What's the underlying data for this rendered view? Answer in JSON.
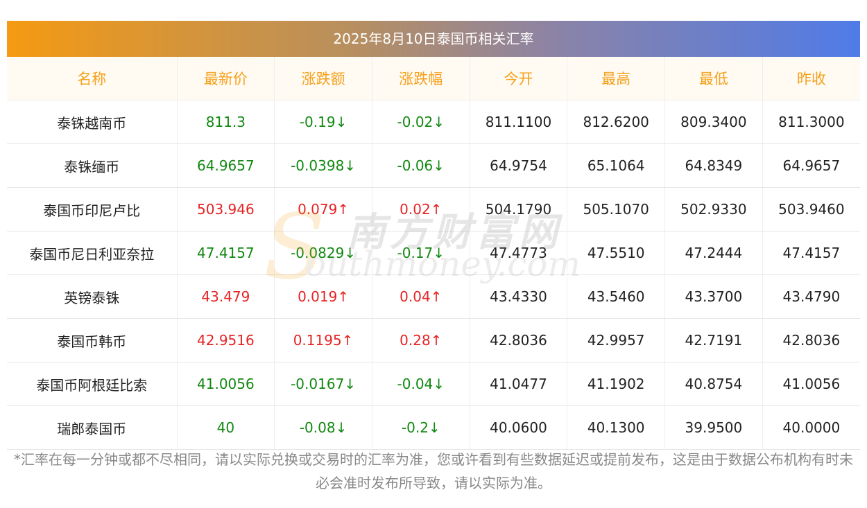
{
  "title": "2025年8月10日泰国币相关汇率",
  "headers": [
    "名称",
    "最新价",
    "涨跌额",
    "涨跌幅",
    "今开",
    "最高",
    "最低",
    "昨收"
  ],
  "rows": [
    {
      "name": "泰铢越南币",
      "latest": "811.3",
      "change": "-0.19↓",
      "pct": "-0.02↓",
      "open": "811.1100",
      "high": "812.6200",
      "low": "809.3400",
      "prev": "811.3000",
      "dir": "down"
    },
    {
      "name": "泰铢缅币",
      "latest": "64.9657",
      "change": "-0.0398↓",
      "pct": "-0.06↓",
      "open": "64.9754",
      "high": "65.1064",
      "low": "64.8349",
      "prev": "64.9657",
      "dir": "down"
    },
    {
      "name": "泰国币印尼卢比",
      "latest": "503.946",
      "change": "0.079↑",
      "pct": "0.02↑",
      "open": "504.1790",
      "high": "505.1070",
      "low": "502.9330",
      "prev": "503.9460",
      "dir": "up"
    },
    {
      "name": "泰国币尼日利亚奈拉",
      "latest": "47.4157",
      "change": "-0.0829↓",
      "pct": "-0.17↓",
      "open": "47.4773",
      "high": "47.5510",
      "low": "47.2444",
      "prev": "47.4157",
      "dir": "down"
    },
    {
      "name": "英镑泰铢",
      "latest": "43.479",
      "change": "0.019↑",
      "pct": "0.04↑",
      "open": "43.4330",
      "high": "43.5460",
      "low": "43.3700",
      "prev": "43.4790",
      "dir": "up"
    },
    {
      "name": "泰国币韩币",
      "latest": "42.9516",
      "change": "0.1195↑",
      "pct": "0.28↑",
      "open": "42.8036",
      "high": "42.9957",
      "low": "42.7191",
      "prev": "42.8036",
      "dir": "up"
    },
    {
      "name": "泰国币阿根廷比索",
      "latest": "41.0056",
      "change": "-0.0167↓",
      "pct": "-0.04↓",
      "open": "41.0477",
      "high": "41.1902",
      "low": "40.8754",
      "prev": "41.0056",
      "dir": "down"
    },
    {
      "name": "瑞郎泰国币",
      "latest": "40",
      "change": "-0.08↓",
      "pct": "-0.2↓",
      "open": "40.0600",
      "high": "40.1300",
      "low": "39.9500",
      "prev": "40.0000",
      "dir": "down"
    }
  ],
  "note": "*汇率在每一分钟或都不尽相同，请以实际兑换或交易时的汇率为准，您或许看到有些数据延迟或提前发布，这是由于数据公布机构有时未必会准时发布所导致，请以实际为准。",
  "watermark": {
    "cn": "南方财富网",
    "en": "outhmoney.com",
    "s": "S"
  },
  "colors": {
    "up": "#e62222",
    "down": "#118811",
    "header_text": "#f5a11c"
  }
}
